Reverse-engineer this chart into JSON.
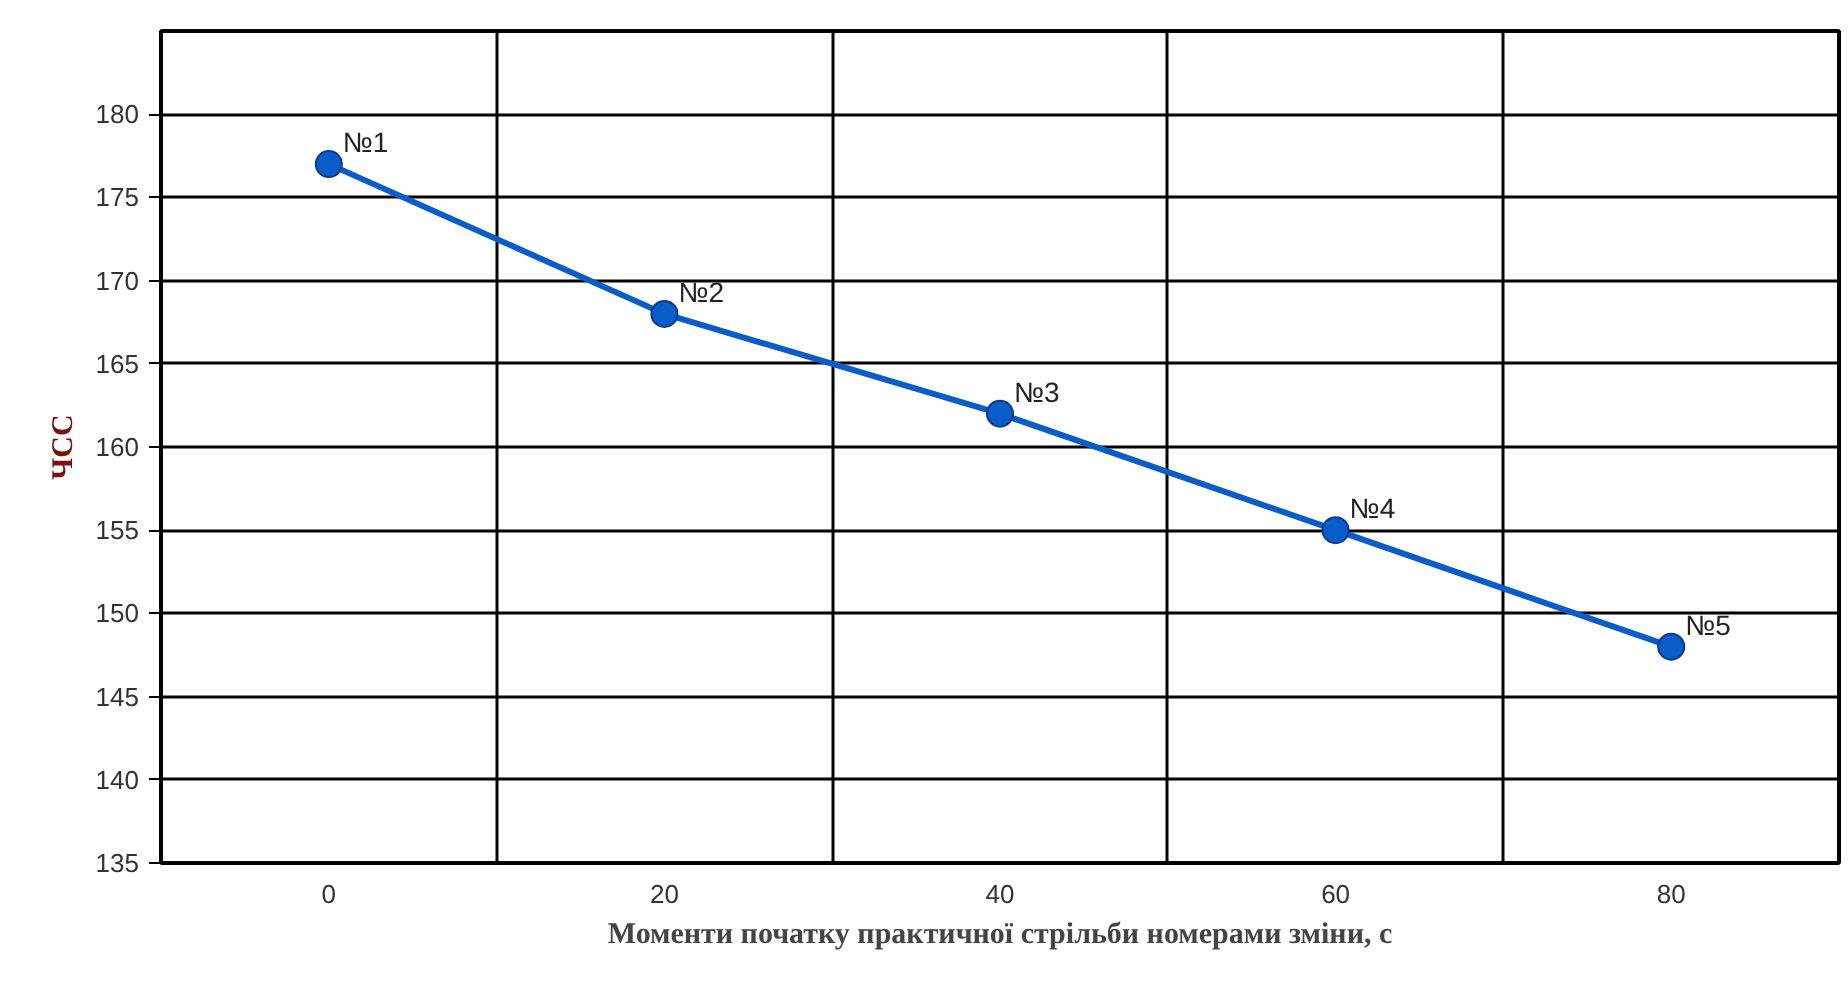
{
  "chart_data": {
    "type": "line",
    "xlabel": "Моменти початку практичної стрільби номерами зміни, с",
    "ylabel": "ЧСС",
    "x": [
      0,
      20,
      40,
      60,
      80
    ],
    "series": [
      {
        "color": "#0a5cc8",
        "values": [
          177,
          168,
          162,
          155,
          148
        ]
      }
    ],
    "xlim": [
      -10,
      90
    ],
    "ylim": [
      135,
      185
    ],
    "xticks": [
      0,
      20,
      40,
      60,
      80,
      {
        "value": 10,
        "label": null
      },
      {
        "value": 30,
        "label": null
      },
      {
        "value": 50,
        "label": null
      },
      {
        "value": 70,
        "label": null
      }
    ],
    "yticks": [
      135,
      140,
      145,
      150,
      155,
      160,
      165,
      170,
      175,
      180
    ],
    "grid": true,
    "marker": "circle",
    "line_style": "solid",
    "annotations": [
      {
        "text": "№1",
        "x": 0,
        "y": 177
      },
      {
        "text": "№2",
        "x": 20,
        "y": 168
      },
      {
        "text": "№3",
        "x": 40,
        "y": 162
      },
      {
        "text": "№4",
        "x": 60,
        "y": 155
      },
      {
        "text": "№5",
        "x": 80,
        "y": 148
      }
    ]
  }
}
